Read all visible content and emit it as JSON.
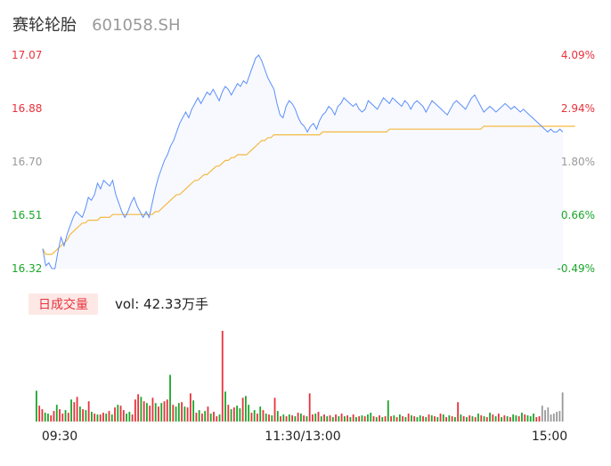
{
  "header": {
    "name": "赛轮轮胎",
    "code": "601058.SH"
  },
  "colors": {
    "up": "#e8323c",
    "down": "#1aa62a",
    "flat": "#999999",
    "price_line": "#5b8ff9",
    "avg_line": "#f5b942",
    "vol_badge_bg": "#fde8e6"
  },
  "chart_data": [
    {
      "type": "line",
      "ylim": [
        16.32,
        17.07
      ],
      "y_ticks": [
        "17.07",
        "16.88",
        "16.70",
        "16.51",
        "16.32"
      ],
      "pct_ticks": [
        "4.09%",
        "2.94%",
        "1.80%",
        "0.66%",
        "-0.49%"
      ],
      "x_ticks": [
        "09:30",
        "11:30/13:00",
        "15:00"
      ],
      "series": [
        {
          "values": [
            16.39,
            16.33,
            16.34,
            16.32,
            16.32,
            16.38,
            16.43,
            16.4,
            16.44,
            16.47,
            16.5,
            16.52,
            16.51,
            16.5,
            16.53,
            16.57,
            16.56,
            16.58,
            16.62,
            16.6,
            16.63,
            16.62,
            16.61,
            16.63,
            16.58,
            16.55,
            16.52,
            16.5,
            16.52,
            16.55,
            16.57,
            16.54,
            16.52,
            16.5,
            16.52,
            16.5,
            16.55,
            16.6,
            16.64,
            16.67,
            16.7,
            16.72,
            16.75,
            16.77,
            16.8,
            16.83,
            16.85,
            16.87,
            16.85,
            16.88,
            16.9,
            16.92,
            16.9,
            16.92,
            16.94,
            16.93,
            16.95,
            16.93,
            16.91,
            16.94,
            16.96,
            16.95,
            16.93,
            16.95,
            16.97,
            16.96,
            16.98,
            16.97,
            17.0,
            17.03,
            17.06,
            17.07,
            17.05,
            17.02,
            16.99,
            16.97,
            16.95,
            16.9,
            16.86,
            16.85,
            16.89,
            16.91,
            16.9,
            16.88,
            16.85,
            16.83,
            16.82,
            16.8,
            16.82,
            16.83,
            16.81,
            16.84,
            16.86,
            16.87,
            16.89,
            16.88,
            16.86,
            16.89,
            16.9,
            16.92,
            16.91,
            16.9,
            16.89,
            16.9,
            16.88,
            16.87,
            16.88,
            16.91,
            16.9,
            16.89,
            16.88,
            16.9,
            16.92,
            16.91,
            16.9,
            16.92,
            16.91,
            16.9,
            16.89,
            16.91,
            16.9,
            16.88,
            16.9,
            16.91,
            16.9,
            16.89,
            16.87,
            16.89,
            16.91,
            16.9,
            16.89,
            16.88,
            16.87,
            16.86,
            16.88,
            16.9,
            16.91,
            16.9,
            16.89,
            16.88,
            16.9,
            16.92,
            16.93,
            16.91,
            16.89,
            16.87,
            16.88,
            16.89,
            16.88,
            16.87,
            16.88,
            16.89,
            16.9,
            16.89,
            16.88,
            16.89,
            16.88,
            16.87,
            16.88,
            16.87,
            16.86,
            16.85,
            16.84,
            16.83,
            16.82,
            16.81,
            16.8,
            16.81,
            16.8,
            16.8,
            16.81,
            16.8
          ]
        },
        {
          "values": [
            16.39,
            16.37,
            16.37,
            16.37,
            16.38,
            16.39,
            16.4,
            16.41,
            16.42,
            16.44,
            16.45,
            16.46,
            16.47,
            16.48,
            16.48,
            16.49,
            16.49,
            16.49,
            16.49,
            16.5,
            16.5,
            16.5,
            16.5,
            16.51,
            16.51,
            16.51,
            16.51,
            16.51,
            16.51,
            16.51,
            16.51,
            16.51,
            16.51,
            16.51,
            16.51,
            16.51,
            16.51,
            16.52,
            16.52,
            16.53,
            16.54,
            16.55,
            16.56,
            16.57,
            16.58,
            16.58,
            16.59,
            16.6,
            16.61,
            16.62,
            16.63,
            16.63,
            16.64,
            16.65,
            16.65,
            16.66,
            16.67,
            16.68,
            16.68,
            16.69,
            16.7,
            16.7,
            16.71,
            16.71,
            16.72,
            16.72,
            16.72,
            16.72,
            16.73,
            16.74,
            16.75,
            16.76,
            16.77,
            16.77,
            16.78,
            16.78,
            16.79,
            16.79,
            16.79,
            16.79,
            16.79,
            16.79,
            16.79,
            16.79,
            16.79,
            16.79,
            16.79,
            16.79,
            16.79,
            16.79,
            16.79,
            16.79,
            16.8,
            16.8,
            16.8,
            16.8,
            16.8,
            16.8,
            16.8,
            16.8,
            16.8,
            16.8,
            16.8,
            16.8,
            16.8,
            16.8,
            16.8,
            16.8,
            16.8,
            16.8,
            16.8,
            16.8,
            16.8,
            16.8,
            16.81,
            16.81,
            16.81,
            16.81,
            16.81,
            16.81,
            16.81,
            16.81,
            16.81,
            16.81,
            16.81,
            16.81,
            16.81,
            16.81,
            16.81,
            16.81,
            16.81,
            16.81,
            16.81,
            16.81,
            16.81,
            16.81,
            16.81,
            16.81,
            16.81,
            16.81,
            16.81,
            16.81,
            16.81,
            16.81,
            16.81,
            16.82,
            16.82,
            16.82,
            16.82,
            16.82,
            16.82,
            16.82,
            16.82,
            16.82,
            16.82,
            16.82,
            16.82,
            16.82,
            16.82,
            16.82,
            16.82,
            16.82,
            16.82,
            16.82,
            16.82,
            16.82,
            16.82,
            16.82,
            16.82,
            16.82,
            16.82,
            16.82,
            16.82,
            16.82,
            16.82,
            16.82
          ]
        }
      ]
    },
    {
      "type": "bar",
      "badge": "日成交量",
      "volume_label": "vol: 42.33万手",
      "values": [
        35,
        18,
        14,
        10,
        9,
        7,
        12,
        19,
        14,
        9,
        13,
        10,
        25,
        22,
        28,
        17,
        14,
        13,
        23,
        11,
        9,
        8,
        8,
        10,
        9,
        12,
        8,
        16,
        19,
        18,
        13,
        9,
        11,
        8,
        25,
        31,
        28,
        23,
        21,
        18,
        27,
        21,
        17,
        21,
        23,
        25,
        53,
        19,
        17,
        21,
        22,
        17,
        16,
        32,
        24,
        10,
        13,
        9,
        12,
        17,
        9,
        11,
        6,
        8,
        103,
        34,
        19,
        14,
        16,
        18,
        15,
        27,
        29,
        19,
        10,
        13,
        9,
        17,
        13,
        9,
        8,
        7,
        27,
        12,
        6,
        8,
        6,
        8,
        7,
        6,
        10,
        9,
        7,
        6,
        32,
        8,
        9,
        11,
        6,
        8,
        6,
        7,
        5,
        8,
        6,
        9,
        6,
        7,
        5,
        8,
        5,
        6,
        7,
        6,
        8,
        10,
        6,
        5,
        7,
        5,
        6,
        24,
        6,
        7,
        5,
        8,
        6,
        5,
        9,
        7,
        6,
        5,
        7,
        6,
        5,
        8,
        7,
        6,
        5,
        9,
        8,
        5,
        7,
        6,
        5,
        22,
        8,
        6,
        5,
        7,
        6,
        5,
        9,
        7,
        6,
        5,
        10,
        8,
        6,
        9,
        5,
        7,
        6,
        5,
        8,
        7,
        6,
        10,
        8,
        7,
        6,
        9,
        5,
        6,
        18,
        13,
        16,
        8,
        9,
        11,
        12,
        33
      ],
      "colors": [
        "down",
        "up",
        "up",
        "down",
        "down",
        "up",
        "up",
        "down",
        "up",
        "up",
        "down",
        "up",
        "down",
        "up",
        "up",
        "down",
        "up",
        "down",
        "up",
        "down",
        "up",
        "down",
        "up",
        "up",
        "down",
        "up",
        "down",
        "up",
        "down",
        "up",
        "up",
        "down",
        "down",
        "up",
        "up",
        "up",
        "down",
        "up",
        "down",
        "up",
        "up",
        "down",
        "up",
        "down",
        "up",
        "up",
        "down",
        "up",
        "down",
        "down",
        "up",
        "down",
        "up",
        "up",
        "down",
        "up",
        "down",
        "up",
        "down",
        "up",
        "down",
        "up",
        "up",
        "down",
        "up",
        "down",
        "up",
        "down",
        "up",
        "down",
        "down",
        "up",
        "down",
        "down",
        "up",
        "down",
        "up",
        "down",
        "up",
        "down",
        "up",
        "down",
        "up",
        "down",
        "up",
        "down",
        "up",
        "down",
        "up",
        "down",
        "up",
        "down",
        "up",
        "down",
        "up",
        "up",
        "down",
        "up",
        "down",
        "up",
        "down",
        "up",
        "down",
        "up",
        "down",
        "up",
        "down",
        "up",
        "down",
        "up",
        "down",
        "up",
        "down",
        "up",
        "down",
        "down",
        "up",
        "down",
        "up",
        "down",
        "up",
        "down",
        "up",
        "down",
        "up",
        "down",
        "up",
        "down",
        "up",
        "down",
        "up",
        "down",
        "down",
        "up",
        "down",
        "up",
        "down",
        "up",
        "down",
        "up",
        "down",
        "up",
        "down",
        "up",
        "down",
        "up",
        "down",
        "up",
        "down",
        "up",
        "down",
        "up",
        "down",
        "up",
        "down",
        "up",
        "down",
        "up",
        "down",
        "up",
        "down",
        "up",
        "down",
        "up",
        "down",
        "down",
        "up",
        "down",
        "up",
        "down",
        "down",
        "down",
        "up",
        "up",
        "flat"
      ]
    }
  ]
}
